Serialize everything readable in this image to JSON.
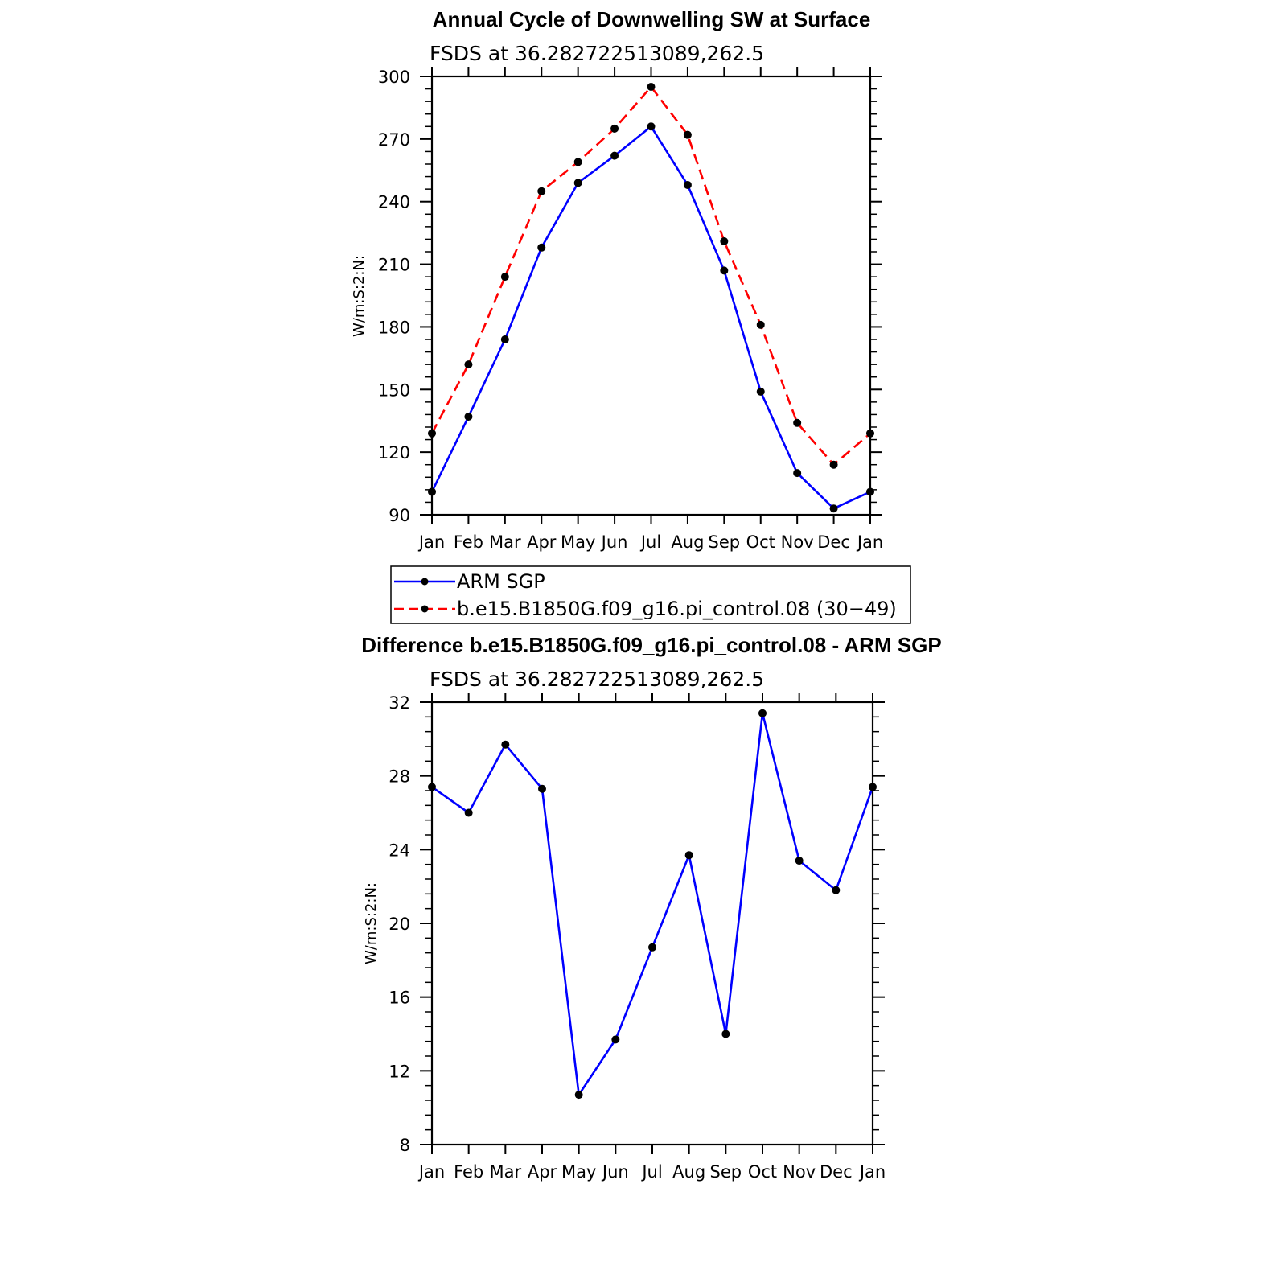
{
  "chart_data": [
    {
      "type": "line",
      "title": "Annual Cycle of Downwelling SW at Surface",
      "subtitle": "FSDS at 36.282722513089,262.5",
      "ylabel": "W/m:S:2:N:",
      "xlabel": "",
      "categories": [
        "Jan",
        "Feb",
        "Mar",
        "Apr",
        "May",
        "Jun",
        "Jul",
        "Aug",
        "Sep",
        "Oct",
        "Nov",
        "Dec",
        "Jan"
      ],
      "ylim": [
        90,
        300
      ],
      "yticks": [
        90,
        120,
        150,
        180,
        210,
        240,
        270,
        300
      ],
      "grid": false,
      "legend_placement": "below",
      "series": [
        {
          "name": "ARM SGP",
          "color": "#0000ff",
          "dash": "solid",
          "values": [
            101,
            137,
            174,
            218,
            249,
            262,
            276,
            248,
            207,
            149,
            110,
            93,
            101
          ]
        },
        {
          "name": "b.e15.B1850G.f09_g16.pi_control.08 (30−49)",
          "color": "#ff0000",
          "dash": "dashed",
          "values": [
            129,
            162,
            204,
            245,
            259,
            275,
            295,
            272,
            221,
            181,
            134,
            114,
            129
          ]
        }
      ]
    },
    {
      "type": "line",
      "title": "Difference b.e15.B1850G.f09_g16.pi_control.08 - ARM SGP",
      "subtitle": "FSDS at 36.282722513089,262.5",
      "ylabel": "W/m:S:2:N:",
      "xlabel": "",
      "categories": [
        "Jan",
        "Feb",
        "Mar",
        "Apr",
        "May",
        "Jun",
        "Jul",
        "Aug",
        "Sep",
        "Oct",
        "Nov",
        "Dec",
        "Jan"
      ],
      "ylim": [
        8,
        32
      ],
      "yticks": [
        8,
        12,
        16,
        20,
        24,
        28,
        32
      ],
      "grid": false,
      "series": [
        {
          "color": "#0000ff",
          "dash": "solid",
          "values": [
            27.4,
            26.0,
            29.7,
            27.3,
            10.7,
            13.7,
            18.7,
            23.7,
            14.0,
            31.4,
            23.4,
            21.8,
            27.4
          ]
        }
      ]
    }
  ]
}
